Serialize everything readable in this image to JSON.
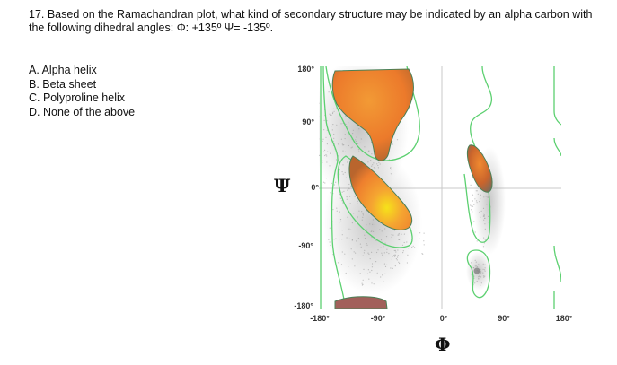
{
  "question": {
    "text": "17. Based on the Ramachandran plot, what kind of secondary structure may be indicated by an alpha carbon with the following dihedral angles: Φ: +135º Ψ= -135º."
  },
  "options": [
    {
      "label": "A. Alpha helix"
    },
    {
      "label": "B. Beta sheet"
    },
    {
      "label": "C. Polyproline helix"
    },
    {
      "label": "D. None of the above"
    }
  ],
  "plot": {
    "type": "ramachandran",
    "x_symbol": "Φ",
    "y_symbol": "Ψ",
    "x_range": [
      -180,
      180
    ],
    "y_range": [
      -180,
      180
    ],
    "x_ticks": [
      "-180°",
      "-90°",
      "0°",
      "90°",
      "180°"
    ],
    "y_ticks": [
      "180°",
      "90°",
      "0°",
      "-90°",
      "-180°"
    ],
    "colors": {
      "contour": "#5cd070",
      "density_low": "#c0622c",
      "density_mid": "#f08a30",
      "density_high": "#f6e21a",
      "zero_line": "#c8c8c8",
      "scatter": "#9a9a9a"
    }
  }
}
